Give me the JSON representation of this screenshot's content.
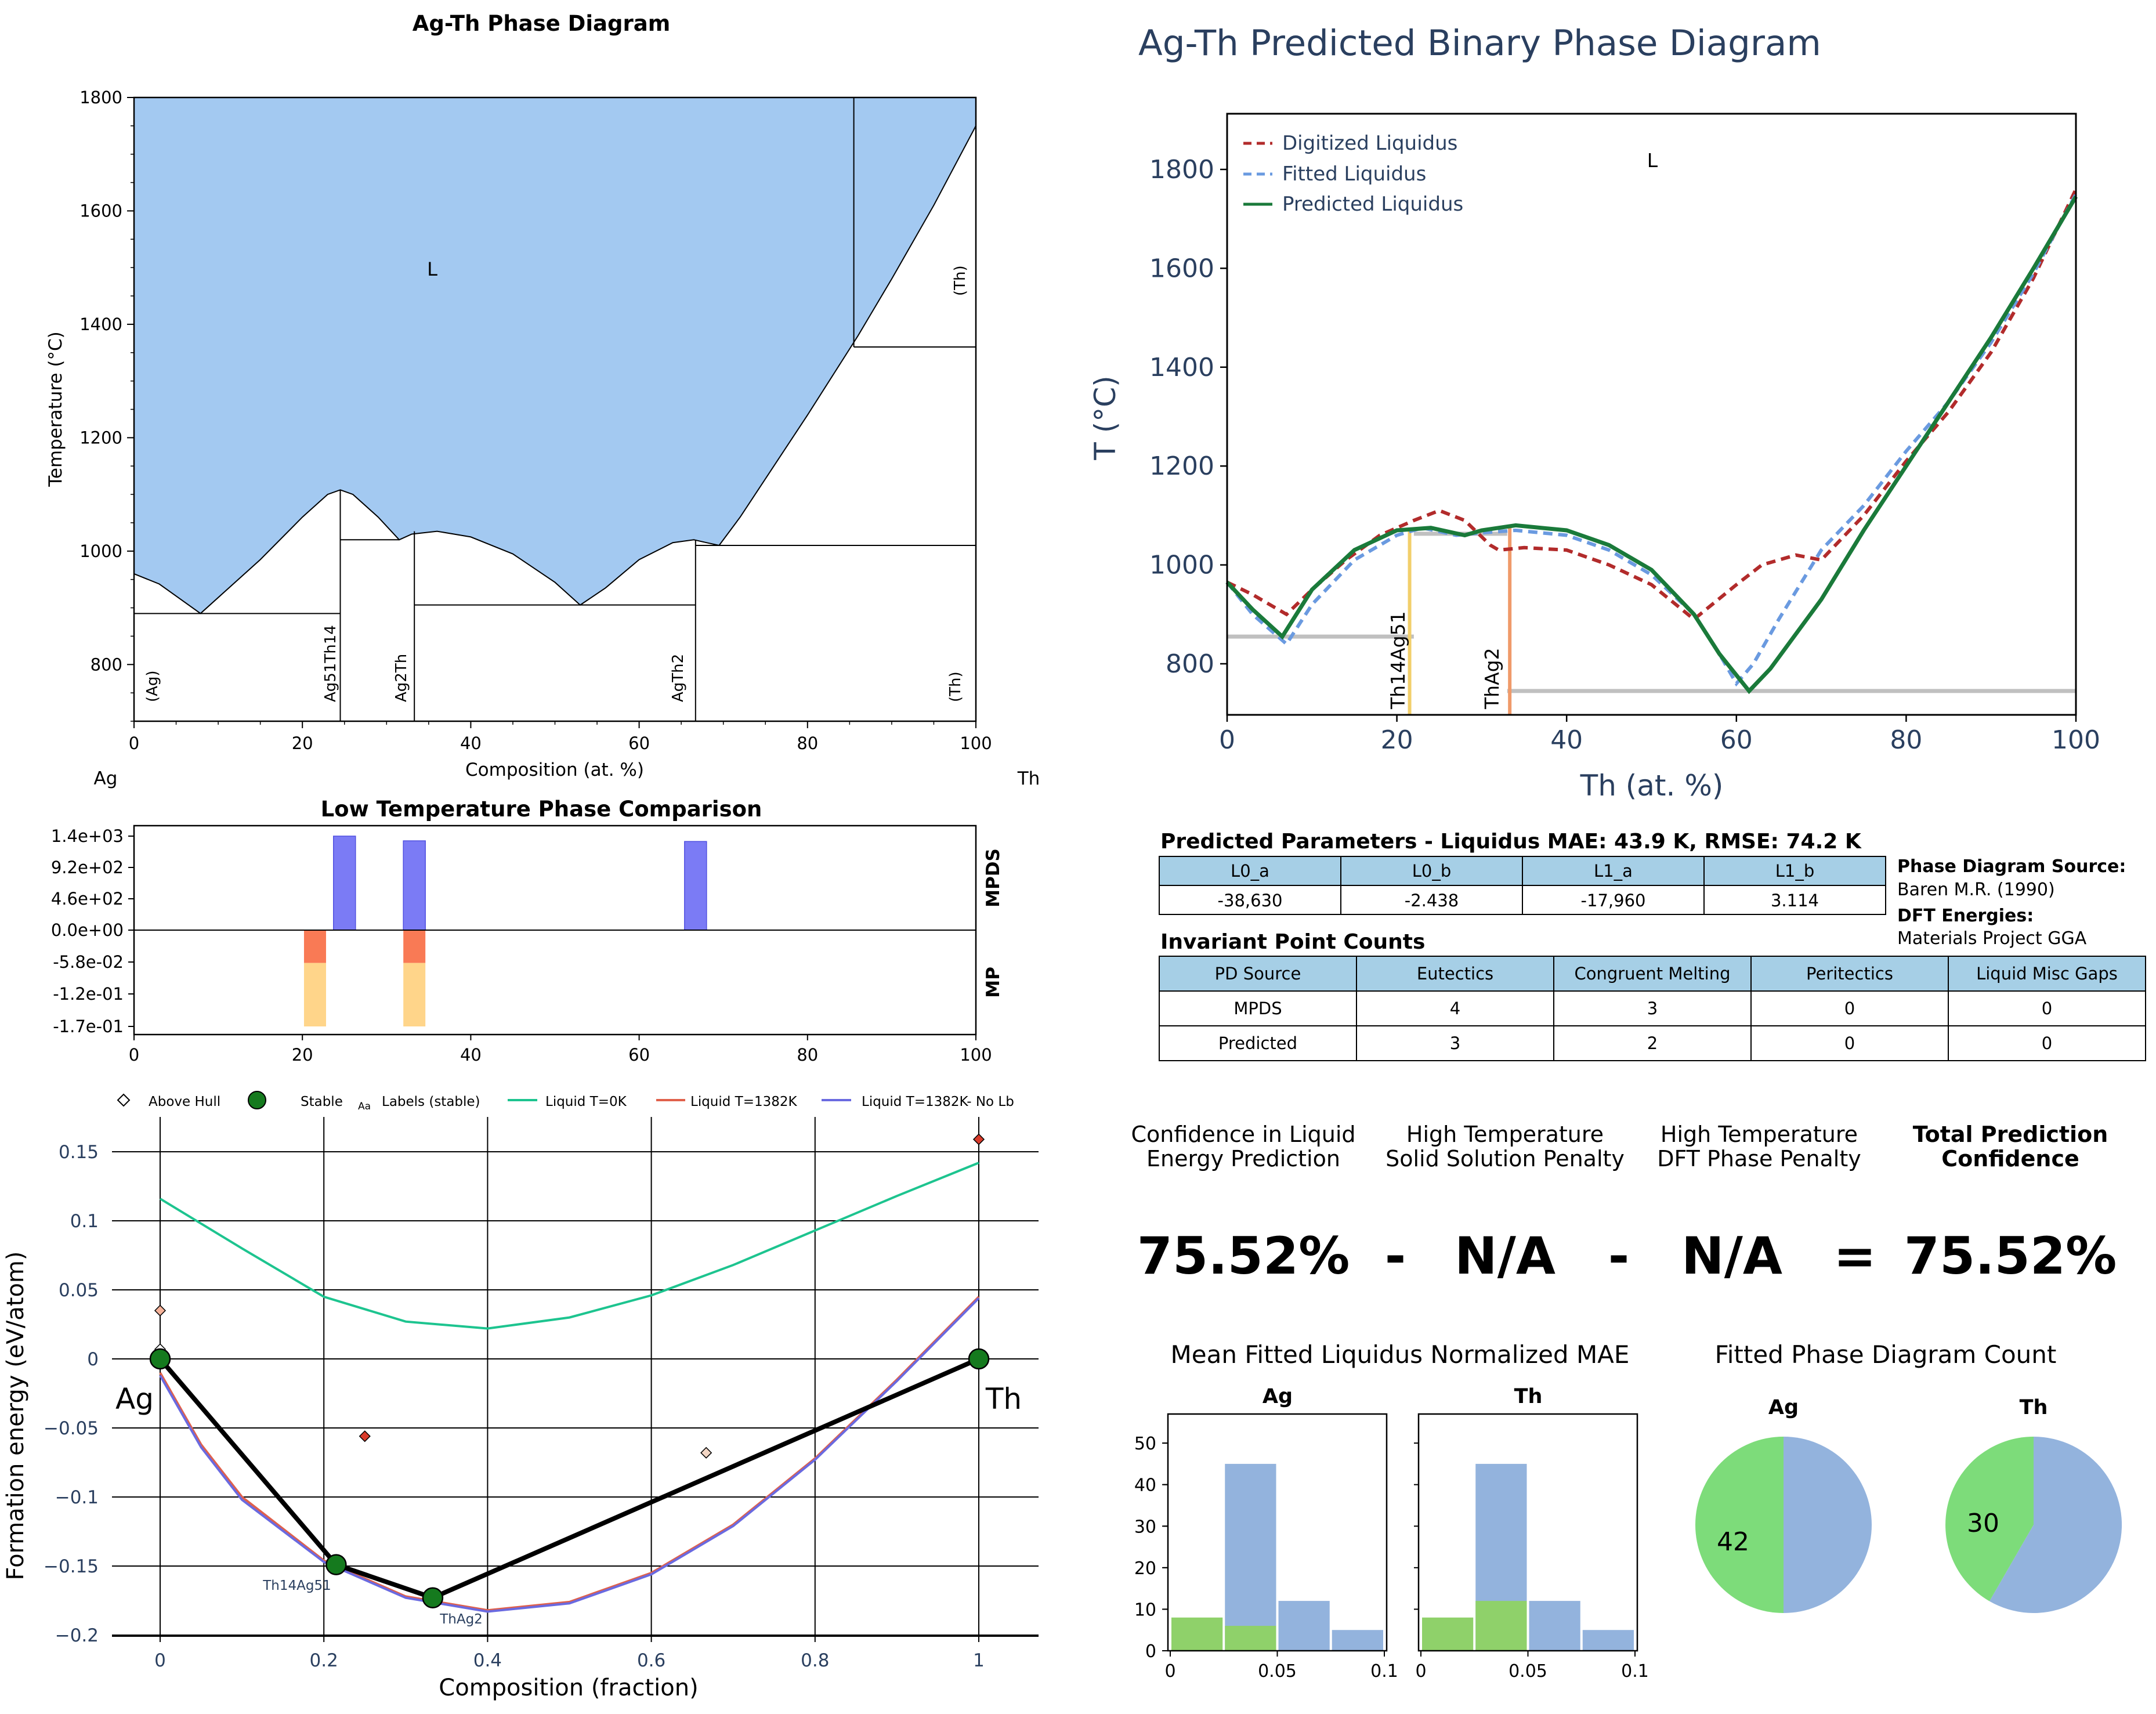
{
  "pd_panel": {
    "title": "Ag-Th Phase Diagram",
    "xlabel": "Composition (at. %)",
    "ylabel": "Temperature (°C)",
    "left_element": "Ag",
    "right_element": "Th",
    "x_ticks": [
      "0",
      "20",
      "40",
      "60",
      "80",
      "100"
    ],
    "y_ticks": [
      "800",
      "1000",
      "1200",
      "1400",
      "1600",
      "1800"
    ],
    "liquid_label": "L",
    "th_label": "(Th)",
    "phase_labels": [
      "(Ag)",
      "Ag51Th14",
      "Ag2Th",
      "AgTh2",
      "(Th)"
    ],
    "colors": {
      "liquid_fill": "#a3c9f1"
    }
  },
  "lt_panel": {
    "title": "Low Temperature Phase Comparison",
    "upper_label": "MPDS",
    "lower_label": "MP",
    "y_ticks": [
      "1.4e+03",
      "9.2e+02",
      "4.6e+02",
      "0.0e+00",
      "-5.8e-02",
      "-1.2e-01",
      "-1.7e-01"
    ],
    "x_ticks": [
      "0",
      "20",
      "40",
      "60",
      "80",
      "100"
    ],
    "colors": {
      "mpds_bar": "#7b7bf5",
      "mp_top": "#f97a55",
      "mp_bottom": "#ffd58a"
    }
  },
  "hull_panel": {
    "legend": [
      "Above Hull",
      "Stable",
      "Labels (stable)",
      "Liquid T=0K",
      "Liquid T=1382K",
      "Liquid T=1382K- No Lb"
    ],
    "legend_aa": "Aa",
    "xlabel": "Composition (fraction)",
    "ylabel": "Formation energy (eV/atom)",
    "x_ticks": [
      "0",
      "0.2",
      "0.4",
      "0.6",
      "0.8",
      "1"
    ],
    "y_ticks": [
      "0.15",
      "0.1",
      "0.05",
      "0",
      "−0.05",
      "−0.1",
      "−0.15",
      "−0.2"
    ],
    "left_label": "Ag",
    "right_label": "Th",
    "stable_labels": [
      "Th14Ag51",
      "ThAg2"
    ],
    "colors": {
      "liquid_0k": "#1dc48f",
      "liquid_1382": "#e0604b",
      "liquid_nolb": "#6a6ae0",
      "stable": "#157a1e",
      "above_hull": "#d93b2b"
    }
  },
  "pred_panel": {
    "title": "Ag-Th Predicted Binary Phase Diagram",
    "xlabel": "Th (at. %)",
    "ylabel": "T (°C)",
    "x_ticks": [
      "0",
      "20",
      "40",
      "60",
      "80",
      "100"
    ],
    "y_ticks": [
      "800",
      "1000",
      "1200",
      "1400",
      "1600",
      "1800"
    ],
    "liquid_label": "L",
    "legend": [
      "Digitized Liquidus",
      "Fitted Liquidus",
      "Predicted Liquidus"
    ],
    "compound_labels": [
      "Th14Ag51",
      "ThAg2"
    ],
    "colors": {
      "digitized": "#b22b2b",
      "fitted": "#6a9ae0",
      "predicted": "#1a7a3a",
      "th14ag51": "#f2cf6b",
      "thag2": "#f09a6a",
      "solid_line": "#c0c0c0",
      "text": "#2a3f5f"
    }
  },
  "params": {
    "title": "Predicted Parameters - Liquidus MAE: 43.9 K, RMSE: 74.2 K",
    "headers": [
      "L0_a",
      "L0_b",
      "L1_a",
      "L1_b"
    ],
    "values": [
      "-38,630",
      "-2.438",
      "-17,960",
      "3.114"
    ],
    "source_label": "Phase Diagram Source:",
    "source_value": "Baren M.R. (1990)",
    "dft_label": "DFT Energies:",
    "dft_value": "Materials Project GGA"
  },
  "invariants": {
    "title": "Invariant Point Counts",
    "headers": [
      "PD Source",
      "Eutectics",
      "Congruent Melting",
      "Peritectics",
      "Liquid Misc Gaps"
    ],
    "rows": [
      [
        "MPDS",
        "4",
        "3",
        "0",
        "0"
      ],
      [
        "Predicted",
        "3",
        "2",
        "0",
        "0"
      ]
    ],
    "header_color": "#a6cfe6"
  },
  "confidence": {
    "h1": "Confidence in Liquid",
    "h1b": "Energy Prediction",
    "h2": "High Temperature",
    "h2b": "Solid Solution Penalty",
    "h3": "High Temperature",
    "h3b": "DFT Phase Penalty",
    "h4": "Total Prediction",
    "h4b": "Confidence",
    "v1": "75.52%",
    "op1": "-",
    "v2": "N/A",
    "op2": "-",
    "v3": "N/A",
    "op3": "=",
    "v4": "75.52%"
  },
  "mae_hist": {
    "title": "Mean Fitted Liquidus Normalized MAE",
    "panels": [
      "Ag",
      "Th"
    ],
    "y_ticks": [
      "0",
      "10",
      "20",
      "30",
      "40",
      "50"
    ],
    "x_ticks": [
      "0",
      "0.05",
      "0.1"
    ],
    "colors": {
      "blue": "#93b3dd",
      "green": "#8fd16a"
    }
  },
  "pie": {
    "title": "Fitted Phase Diagram Count",
    "panels": [
      "Ag",
      "Th"
    ],
    "labels": [
      "42",
      "30"
    ],
    "colors": {
      "green": "#7ddc7a",
      "blue": "#93b3dd"
    }
  },
  "chart_data": [
    {
      "type": "area",
      "title": "Ag-Th Phase Diagram",
      "xlabel": "Composition (at. %)",
      "ylabel": "Temperature (°C)",
      "xlim": [
        0,
        100
      ],
      "ylim": [
        700,
        1800
      ],
      "liquidus": [
        [
          0,
          960
        ],
        [
          3,
          942
        ],
        [
          7.9,
          890
        ],
        [
          15,
          985
        ],
        [
          20,
          1060
        ],
        [
          23,
          1100
        ],
        [
          24.5,
          1108
        ],
        [
          26,
          1100
        ],
        [
          29,
          1060
        ],
        [
          31.5,
          1020
        ],
        [
          33,
          1030
        ],
        [
          36,
          1035
        ],
        [
          40,
          1025
        ],
        [
          45,
          995
        ],
        [
          50,
          945
        ],
        [
          53,
          905
        ],
        [
          56,
          935
        ],
        [
          60,
          985
        ],
        [
          64,
          1015
        ],
        [
          66.5,
          1020
        ],
        [
          68,
          1015
        ],
        [
          69.5,
          1010
        ],
        [
          72,
          1060
        ],
        [
          80,
          1240
        ],
        [
          86,
          1380
        ],
        [
          90,
          1480
        ],
        [
          95,
          1610
        ],
        [
          100,
          1750
        ]
      ],
      "horizontal_lines": [
        [
          0,
          24.5,
          890
        ],
        [
          24.5,
          31.5,
          1020
        ],
        [
          33.3,
          66.7,
          905
        ],
        [
          66.7,
          100,
          1010
        ],
        [
          85.5,
          100,
          1360
        ]
      ],
      "vertical_lines": [
        [
          24.5,
          700,
          1108
        ],
        [
          33.3,
          700,
          1035
        ],
        [
          31.5,
          1020,
          1020
        ],
        [
          66.7,
          700,
          1020
        ],
        [
          85.5,
          1360,
          1800
        ]
      ]
    },
    {
      "type": "bar",
      "title": "Low Temperature Phase Comparison",
      "xlim": [
        0,
        100
      ],
      "mpds_bars": [
        {
          "x": 25.0,
          "value": 1400
        },
        {
          "x": 33.3,
          "value": 1330
        },
        {
          "x": 66.7,
          "value": 1320
        }
      ],
      "mp_bars": [
        {
          "x": 21.5,
          "top": -0.058,
          "bottom": -0.17
        },
        {
          "x": 33.3,
          "top": -0.058,
          "bottom": -0.17
        }
      ]
    },
    {
      "type": "line",
      "title": "",
      "xlabel": "Composition (fraction)",
      "ylabel": "Formation energy (eV/atom)",
      "xlim": [
        -0.02,
        1.07
      ],
      "ylim": [
        -0.2,
        0.165
      ],
      "hull": [
        [
          0,
          0
        ],
        [
          0.215,
          -0.149
        ],
        [
          0.333,
          -0.173
        ],
        [
          1,
          0
        ]
      ],
      "stable": [
        [
          0,
          0
        ],
        [
          0.215,
          -0.149
        ],
        [
          0.333,
          -0.173
        ],
        [
          1,
          0
        ]
      ],
      "above_hull": [
        [
          0,
          0.035
        ],
        [
          0,
          0.007
        ],
        [
          0.25,
          -0.056
        ],
        [
          0.667,
          -0.068
        ],
        [
          1,
          0.159
        ]
      ],
      "series": [
        {
          "name": "Liquid T=0K",
          "values": [
            [
              0,
              0.116
            ],
            [
              0.1,
              0.08
            ],
            [
              0.2,
              0.045
            ],
            [
              0.3,
              0.027
            ],
            [
              0.4,
              0.022
            ],
            [
              0.5,
              0.03
            ],
            [
              0.6,
              0.046
            ],
            [
              0.7,
              0.068
            ],
            [
              0.8,
              0.093
            ],
            [
              0.9,
              0.118
            ],
            [
              1,
              0.142
            ]
          ]
        },
        {
          "name": "Liquid T=1382K",
          "values": [
            [
              0,
              -0.01
            ],
            [
              0.05,
              -0.062
            ],
            [
              0.1,
              -0.1
            ],
            [
              0.2,
              -0.146
            ],
            [
              0.3,
              -0.172
            ],
            [
              0.4,
              -0.182
            ],
            [
              0.5,
              -0.176
            ],
            [
              0.6,
              -0.155
            ],
            [
              0.7,
              -0.12
            ],
            [
              0.8,
              -0.072
            ],
            [
              0.9,
              -0.015
            ],
            [
              1,
              0.045
            ]
          ]
        },
        {
          "name": "Liquid T=1382K- No Lb",
          "values": [
            [
              0,
              -0.012
            ],
            [
              0.05,
              -0.064
            ],
            [
              0.1,
              -0.102
            ],
            [
              0.2,
              -0.147
            ],
            [
              0.3,
              -0.173
            ],
            [
              0.4,
              -0.183
            ],
            [
              0.5,
              -0.177
            ],
            [
              0.6,
              -0.156
            ],
            [
              0.7,
              -0.121
            ],
            [
              0.8,
              -0.073
            ],
            [
              0.9,
              -0.016
            ],
            [
              1,
              0.044
            ]
          ]
        }
      ]
    },
    {
      "type": "line",
      "title": "Ag-Th Predicted Binary Phase Diagram",
      "xlabel": "Th (at. %)",
      "ylabel": "T (°C)",
      "xlim": [
        0,
        100
      ],
      "ylim": [
        700,
        1900
      ],
      "series": [
        {
          "name": "Digitized Liquidus",
          "values": [
            [
              0,
              965
            ],
            [
              3,
              940
            ],
            [
              7,
              900
            ],
            [
              10,
              950
            ],
            [
              14,
              1010
            ],
            [
              18,
              1060
            ],
            [
              22,
              1090
            ],
            [
              25,
              1110
            ],
            [
              28,
              1090
            ],
            [
              31,
              1040
            ],
            [
              32,
              1030
            ],
            [
              35,
              1035
            ],
            [
              40,
              1030
            ],
            [
              45,
              1000
            ],
            [
              50,
              960
            ],
            [
              55,
              890
            ],
            [
              60,
              960
            ],
            [
              63,
              1000
            ],
            [
              67,
              1020
            ],
            [
              70,
              1010
            ],
            [
              75,
              1100
            ],
            [
              80,
              1210
            ],
            [
              85,
              1310
            ],
            [
              90,
              1430
            ],
            [
              95,
              1580
            ],
            [
              100,
              1760
            ]
          ]
        },
        {
          "name": "Fitted Liquidus",
          "values": [
            [
              0,
              965
            ],
            [
              3,
              900
            ],
            [
              7,
              840
            ],
            [
              10,
              920
            ],
            [
              15,
              1010
            ],
            [
              20,
              1060
            ],
            [
              23,
              1075
            ],
            [
              27,
              1060
            ],
            [
              30,
              1065
            ],
            [
              34,
              1070
            ],
            [
              40,
              1060
            ],
            [
              45,
              1030
            ],
            [
              50,
              980
            ],
            [
              55,
              900
            ],
            [
              58,
              820
            ],
            [
              60,
              760
            ],
            [
              62,
              800
            ],
            [
              65,
              890
            ],
            [
              70,
              1030
            ],
            [
              75,
              1120
            ],
            [
              80,
              1230
            ],
            [
              85,
              1330
            ],
            [
              90,
              1450
            ],
            [
              95,
              1590
            ],
            [
              100,
              1750
            ]
          ]
        },
        {
          "name": "Predicted Liquidus",
          "values": [
            [
              0,
              965
            ],
            [
              3,
              910
            ],
            [
              6.5,
              855
            ],
            [
              10,
              950
            ],
            [
              15,
              1030
            ],
            [
              20,
              1070
            ],
            [
              24,
              1075
            ],
            [
              28,
              1060
            ],
            [
              30,
              1070
            ],
            [
              34,
              1080
            ],
            [
              40,
              1070
            ],
            [
              45,
              1040
            ],
            [
              50,
              990
            ],
            [
              55,
              900
            ],
            [
              58,
              820
            ],
            [
              61.5,
              745
            ],
            [
              64,
              790
            ],
            [
              70,
              930
            ],
            [
              75,
              1070
            ],
            [
              80,
              1200
            ],
            [
              85,
              1330
            ],
            [
              90,
              1460
            ],
            [
              95,
              1600
            ],
            [
              100,
              1745
            ]
          ]
        }
      ],
      "solid_lines": [
        [
          0,
          22,
          855
        ],
        [
          33,
          100,
          745
        ],
        [
          22,
          33,
          1063
        ]
      ],
      "compounds": [
        {
          "name": "Th14Ag51",
          "x": 21.5,
          "top": 1075
        },
        {
          "name": "ThAg2",
          "x": 33.3,
          "top": 1080
        }
      ]
    },
    {
      "type": "bar",
      "title": "Mean Fitted Liquidus Normalized MAE",
      "panels": [
        {
          "name": "Ag",
          "blue": [
            0,
            45,
            12,
            5
          ],
          "green": [
            8,
            6,
            0,
            0
          ]
        },
        {
          "name": "Th",
          "blue": [
            0,
            45,
            12,
            5
          ],
          "green": [
            8,
            12,
            0,
            0
          ]
        }
      ],
      "bin_edges": [
        0,
        0.025,
        0.05,
        0.075,
        0.1
      ],
      "ylim": [
        0,
        57
      ]
    },
    {
      "type": "pie",
      "title": "Fitted Phase Diagram Count",
      "panels": [
        {
          "name": "Ag",
          "green": 42,
          "blue": 42
        },
        {
          "name": "Th",
          "green": 30,
          "blue": 42
        }
      ]
    }
  ]
}
